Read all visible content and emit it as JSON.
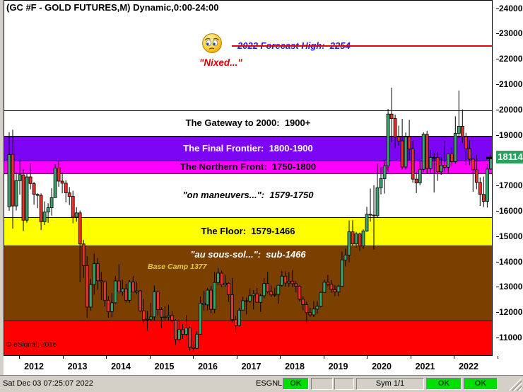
{
  "window": {
    "title": "(GC #F - GOLD FUTURES,M) Dynamic,0:00-24:00"
  },
  "status_bar": {
    "timestamp": "Sat Dec 03 07:25:07 2022",
    "feed_label": "ESGNL:",
    "feed_status": "OK",
    "symbol_indicator": "Sym 1/1",
    "status_ok_2": "OK",
    "status_ok_3": "OK"
  },
  "chart_data": {
    "type": "candlestick",
    "title": "(GC #F - GOLD FUTURES,M) Dynamic,0:00-24:00",
    "symbol": "GC #F GOLD FUTURES",
    "interval": "Monthly",
    "y_axis": {
      "ticks": [
        24000,
        23000,
        22000,
        21000,
        20000,
        19000,
        18000,
        17000,
        16000,
        15000,
        14000,
        13000,
        12000,
        11000
      ],
      "last_price": 18114,
      "last_price_label": "18114",
      "last_price_box_color": "#2AA25E"
    },
    "x_axis": {
      "years": [
        "2012",
        "2013",
        "2014",
        "2015",
        "2016",
        "2017",
        "2018",
        "2019",
        "2020",
        "2021",
        "2022"
      ]
    },
    "zones": [
      {
        "name": "gateway",
        "label": "The Gateway to 2000:  1900+",
        "from": 2000,
        "to": 1900,
        "bg": "#FFFFFF",
        "color": "#000000",
        "italic": false
      },
      {
        "name": "final-frontier",
        "label": "The Final Frontier:  1800-1900",
        "from": 1900,
        "to": 1800,
        "bg": "#7D05F5",
        "color": "#FFFFFF",
        "italic": false
      },
      {
        "name": "northern-front",
        "label": "The Northern Front:  1750-1800",
        "from": 1800,
        "to": 1750,
        "bg": "#FF00FF",
        "color": "#000000",
        "italic": false
      },
      {
        "name": "maneuvers",
        "label": "\"on maneuvers...\":  1579-1750",
        "from": 1750,
        "to": 1579,
        "bg": "#FFFFFF",
        "color": "#000000",
        "italic": true
      },
      {
        "name": "floor",
        "label": "The Floor:  1579-1466",
        "from": 1579,
        "to": 1466,
        "bg": "#FFFF00",
        "color": "#000000",
        "italic": false
      },
      {
        "name": "sous-sol",
        "label": "\"au sous-sol...\":  sub-1466",
        "from": 1466,
        "to": 1170,
        "bg": "#7B3F00",
        "color": "#FFFFFF",
        "italic": true,
        "label_at_top": true
      },
      {
        "name": "basement",
        "label": "",
        "from": 1170,
        "to": 1020,
        "bg": "#FF0000",
        "color": "#000000",
        "italic": false
      }
    ],
    "forecast_line": {
      "label": "2022 Forecast High:  2254",
      "price": 2254,
      "line_color": "#E60000",
      "text_color": "#2222CE",
      "nixed_label": "\"Nixed...\"",
      "nixed_color": "#D40000"
    },
    "annotations": {
      "base_camp": {
        "label": "Base Camp 1377",
        "price": 1377,
        "color": "#E0CC3A"
      },
      "copyright": {
        "label": "© eSignal, 2016"
      }
    },
    "candle_colors": {
      "up": "#3BA26E",
      "down": "#E8312A",
      "wick": "#000000"
    },
    "candles_format": "[year, month, open, high, low, close] in $/oz (axis shows value x10)",
    "candles": [
      [
        2011,
        8,
        1619,
        1913,
        1603,
        1825
      ],
      [
        2011,
        9,
        1826,
        1923,
        1532,
        1622
      ],
      [
        2011,
        10,
        1622,
        1754,
        1604,
        1722
      ],
      [
        2011,
        11,
        1722,
        1802,
        1667,
        1746
      ],
      [
        2011,
        12,
        1745,
        1767,
        1523,
        1566
      ],
      [
        2012,
        1,
        1566,
        1748,
        1556,
        1737
      ],
      [
        2012,
        2,
        1737,
        1790,
        1688,
        1711
      ],
      [
        2012,
        3,
        1710,
        1717,
        1627,
        1668
      ],
      [
        2012,
        4,
        1668,
        1672,
        1613,
        1664
      ],
      [
        2012,
        5,
        1664,
        1672,
        1527,
        1560
      ],
      [
        2012,
        6,
        1560,
        1640,
        1547,
        1598
      ],
      [
        2012,
        7,
        1598,
        1633,
        1556,
        1615
      ],
      [
        2012,
        8,
        1615,
        1692,
        1584,
        1655
      ],
      [
        2012,
        9,
        1655,
        1787,
        1655,
        1772
      ],
      [
        2012,
        10,
        1772,
        1798,
        1698,
        1720
      ],
      [
        2012,
        11,
        1720,
        1755,
        1672,
        1712
      ],
      [
        2012,
        12,
        1712,
        1723,
        1636,
        1674
      ],
      [
        2013,
        1,
        1674,
        1697,
        1626,
        1660
      ],
      [
        2013,
        2,
        1660,
        1682,
        1554,
        1578
      ],
      [
        2013,
        3,
        1578,
        1618,
        1560,
        1595
      ],
      [
        2013,
        4,
        1595,
        1604,
        1321,
        1472
      ],
      [
        2013,
        5,
        1472,
        1488,
        1338,
        1387
      ],
      [
        2013,
        6,
        1387,
        1424,
        1180,
        1223
      ],
      [
        2013,
        7,
        1223,
        1334,
        1208,
        1312
      ],
      [
        2013,
        8,
        1312,
        1434,
        1272,
        1394
      ],
      [
        2013,
        9,
        1394,
        1417,
        1291,
        1327
      ],
      [
        2013,
        10,
        1327,
        1362,
        1251,
        1323
      ],
      [
        2013,
        11,
        1323,
        1327,
        1225,
        1250
      ],
      [
        2013,
        12,
        1250,
        1267,
        1181,
        1205
      ],
      [
        2014,
        1,
        1205,
        1280,
        1182,
        1240
      ],
      [
        2014,
        2,
        1240,
        1345,
        1237,
        1326
      ],
      [
        2014,
        3,
        1326,
        1392,
        1277,
        1283
      ],
      [
        2014,
        4,
        1283,
        1331,
        1268,
        1295
      ],
      [
        2014,
        5,
        1295,
        1315,
        1241,
        1250
      ],
      [
        2014,
        6,
        1250,
        1330,
        1240,
        1322
      ],
      [
        2014,
        7,
        1322,
        1346,
        1281,
        1282
      ],
      [
        2014,
        8,
        1282,
        1324,
        1273,
        1287
      ],
      [
        2014,
        9,
        1287,
        1290,
        1204,
        1208
      ],
      [
        2014,
        10,
        1208,
        1255,
        1160,
        1173
      ],
      [
        2014,
        11,
        1173,
        1208,
        1130,
        1175
      ],
      [
        2014,
        12,
        1175,
        1239,
        1168,
        1184
      ],
      [
        2015,
        1,
        1184,
        1308,
        1167,
        1283
      ],
      [
        2015,
        2,
        1283,
        1285,
        1190,
        1213
      ],
      [
        2015,
        3,
        1213,
        1223,
        1141,
        1183
      ],
      [
        2015,
        4,
        1183,
        1225,
        1167,
        1184
      ],
      [
        2015,
        5,
        1184,
        1232,
        1168,
        1190
      ],
      [
        2015,
        6,
        1190,
        1206,
        1162,
        1171
      ],
      [
        2015,
        7,
        1171,
        1175,
        1072,
        1095
      ],
      [
        2015,
        8,
        1095,
        1170,
        1080,
        1134
      ],
      [
        2015,
        9,
        1134,
        1156,
        1098,
        1115
      ],
      [
        2015,
        10,
        1115,
        1191,
        1104,
        1141
      ],
      [
        2015,
        11,
        1141,
        1146,
        1052,
        1064
      ],
      [
        2015,
        12,
        1064,
        1088,
        1045,
        1060
      ],
      [
        2016,
        1,
        1060,
        1128,
        1061,
        1116
      ],
      [
        2016,
        2,
        1116,
        1264,
        1115,
        1238
      ],
      [
        2016,
        3,
        1238,
        1287,
        1208,
        1232
      ],
      [
        2016,
        4,
        1232,
        1299,
        1209,
        1290
      ],
      [
        2016,
        5,
        1290,
        1306,
        1199,
        1214
      ],
      [
        2016,
        6,
        1214,
        1362,
        1199,
        1320
      ],
      [
        2016,
        7,
        1320,
        1377,
        1310,
        1357
      ],
      [
        2016,
        8,
        1357,
        1367,
        1302,
        1311
      ],
      [
        2016,
        9,
        1311,
        1350,
        1302,
        1317
      ],
      [
        2016,
        10,
        1317,
        1321,
        1243,
        1272
      ],
      [
        2016,
        11,
        1272,
        1338,
        1163,
        1173
      ],
      [
        2016,
        12,
        1173,
        1188,
        1124,
        1150
      ],
      [
        2017,
        1,
        1150,
        1220,
        1146,
        1211
      ],
      [
        2017,
        2,
        1211,
        1264,
        1211,
        1248
      ],
      [
        2017,
        3,
        1248,
        1261,
        1194,
        1247
      ],
      [
        2017,
        4,
        1247,
        1297,
        1240,
        1268
      ],
      [
        2017,
        5,
        1268,
        1290,
        1213,
        1275
      ],
      [
        2017,
        6,
        1275,
        1299,
        1240,
        1242
      ],
      [
        2017,
        7,
        1242,
        1275,
        1204,
        1268
      ],
      [
        2017,
        8,
        1268,
        1337,
        1257,
        1316
      ],
      [
        2017,
        9,
        1316,
        1362,
        1277,
        1284
      ],
      [
        2017,
        10,
        1284,
        1308,
        1262,
        1271
      ],
      [
        2017,
        11,
        1271,
        1299,
        1262,
        1273
      ],
      [
        2017,
        12,
        1273,
        1311,
        1236,
        1309
      ],
      [
        2018,
        1,
        1309,
        1366,
        1303,
        1345
      ],
      [
        2018,
        2,
        1345,
        1364,
        1303,
        1318
      ],
      [
        2018,
        3,
        1318,
        1362,
        1302,
        1325
      ],
      [
        2018,
        4,
        1325,
        1369,
        1302,
        1315
      ],
      [
        2018,
        5,
        1315,
        1326,
        1281,
        1305
      ],
      [
        2018,
        6,
        1305,
        1309,
        1246,
        1254
      ],
      [
        2018,
        7,
        1254,
        1266,
        1210,
        1233
      ],
      [
        2018,
        8,
        1233,
        1244,
        1160,
        1201
      ],
      [
        2018,
        9,
        1201,
        1220,
        1184,
        1192
      ],
      [
        2018,
        10,
        1192,
        1246,
        1184,
        1215
      ],
      [
        2018,
        11,
        1215,
        1246,
        1196,
        1226
      ],
      [
        2018,
        12,
        1226,
        1284,
        1221,
        1281
      ],
      [
        2019,
        1,
        1281,
        1331,
        1281,
        1321
      ],
      [
        2019,
        2,
        1321,
        1350,
        1305,
        1313
      ],
      [
        2019,
        3,
        1313,
        1330,
        1280,
        1292
      ],
      [
        2019,
        4,
        1292,
        1310,
        1266,
        1283
      ],
      [
        2019,
        5,
        1283,
        1311,
        1266,
        1305
      ],
      [
        2019,
        6,
        1305,
        1442,
        1305,
        1409
      ],
      [
        2019,
        7,
        1409,
        1454,
        1384,
        1428
      ],
      [
        2019,
        8,
        1428,
        1565,
        1400,
        1520
      ],
      [
        2019,
        9,
        1520,
        1566,
        1465,
        1472
      ],
      [
        2019,
        10,
        1472,
        1520,
        1458,
        1512
      ],
      [
        2019,
        11,
        1512,
        1517,
        1445,
        1464
      ],
      [
        2019,
        12,
        1464,
        1530,
        1453,
        1523
      ],
      [
        2020,
        1,
        1523,
        1619,
        1520,
        1589
      ],
      [
        2020,
        2,
        1589,
        1691,
        1560,
        1586
      ],
      [
        2020,
        3,
        1586,
        1704,
        1450,
        1583
      ],
      [
        2020,
        4,
        1583,
        1789,
        1576,
        1694
      ],
      [
        2020,
        5,
        1694,
        1775,
        1668,
        1730
      ],
      [
        2020,
        6,
        1730,
        1804,
        1671,
        1780
      ],
      [
        2020,
        7,
        1780,
        2005,
        1757,
        1985
      ],
      [
        2020,
        8,
        1985,
        2089,
        1874,
        1967
      ],
      [
        2020,
        9,
        1967,
        1983,
        1849,
        1895
      ],
      [
        2020,
        10,
        1895,
        1939,
        1859,
        1879
      ],
      [
        2020,
        11,
        1879,
        1966,
        1767,
        1776
      ],
      [
        2020,
        12,
        1776,
        1912,
        1767,
        1895
      ],
      [
        2021,
        1,
        1895,
        1962,
        1800,
        1847
      ],
      [
        2021,
        2,
        1847,
        1878,
        1714,
        1728
      ],
      [
        2021,
        3,
        1728,
        1756,
        1673,
        1713
      ],
      [
        2021,
        4,
        1713,
        1798,
        1704,
        1767
      ],
      [
        2021,
        5,
        1767,
        1913,
        1756,
        1905
      ],
      [
        2021,
        6,
        1905,
        1919,
        1750,
        1770
      ],
      [
        2021,
        7,
        1770,
        1843,
        1750,
        1814
      ],
      [
        2021,
        8,
        1814,
        1831,
        1675,
        1814
      ],
      [
        2021,
        9,
        1814,
        1836,
        1721,
        1757
      ],
      [
        2021,
        10,
        1757,
        1815,
        1745,
        1783
      ],
      [
        2021,
        11,
        1783,
        1879,
        1758,
        1775
      ],
      [
        2021,
        12,
        1775,
        1820,
        1753,
        1828
      ],
      [
        2022,
        1,
        1828,
        1853,
        1780,
        1797
      ],
      [
        2022,
        2,
        1797,
        1976,
        1788,
        1909
      ],
      [
        2022,
        3,
        1909,
        2078,
        1890,
        1937
      ],
      [
        2022,
        4,
        1937,
        2003,
        1871,
        1896
      ],
      [
        2022,
        5,
        1896,
        1911,
        1785,
        1848
      ],
      [
        2022,
        6,
        1848,
        1882,
        1783,
        1807
      ],
      [
        2022,
        7,
        1807,
        1814,
        1678,
        1765
      ],
      [
        2022,
        8,
        1765,
        1824,
        1688,
        1715
      ],
      [
        2022,
        9,
        1715,
        1735,
        1622,
        1668
      ],
      [
        2022,
        10,
        1668,
        1738,
        1618,
        1640
      ],
      [
        2022,
        11,
        1640,
        1788,
        1616,
        1768
      ],
      [
        2022,
        12,
        1768,
        1824,
        1766,
        1811
      ]
    ]
  }
}
